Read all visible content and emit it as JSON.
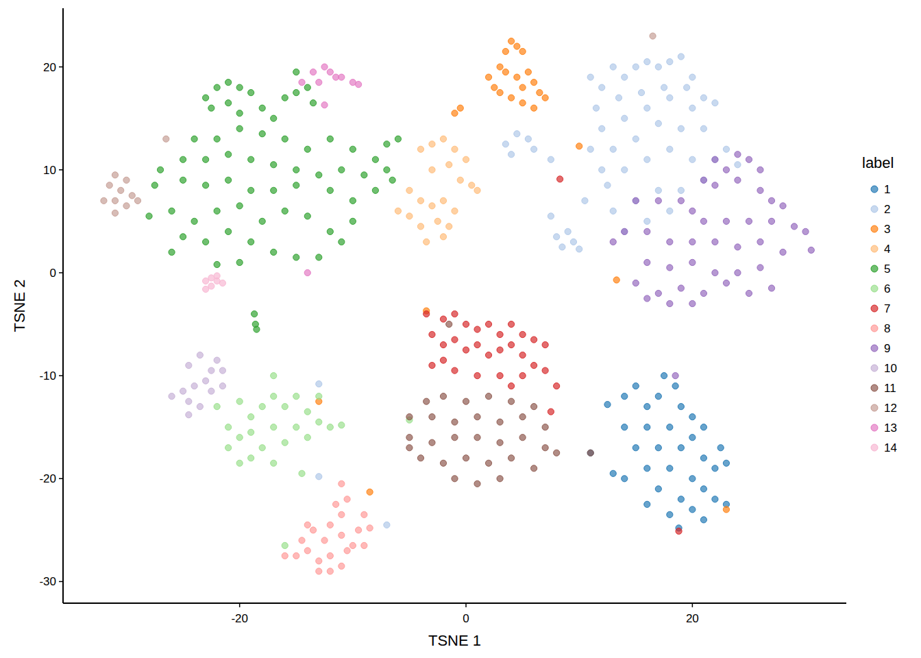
{
  "chart_data": {
    "type": "scatter",
    "x_label": "TSNE 1",
    "y_label": "TSNE 2",
    "legend_title": "label",
    "xlim": [
      -35.6,
      33.6
    ],
    "ylim": [
      -32.1,
      25.7
    ],
    "xticks": [
      -20,
      0,
      20
    ],
    "yticks": [
      -30,
      -20,
      -10,
      0,
      10,
      20
    ],
    "grid": false,
    "legend": "right",
    "marker": "circle",
    "series": [
      {
        "name": "1",
        "color": "#1f77b4",
        "x": [
          12.5,
          14,
          15,
          16,
          17,
          17.5,
          18.5,
          19,
          20,
          21,
          20,
          18,
          16,
          14,
          15,
          17,
          19,
          21,
          22,
          23,
          22.5,
          13,
          14,
          16,
          18,
          20,
          17,
          19,
          21,
          22,
          16,
          18,
          20,
          21,
          11,
          18.8,
          23
        ],
        "values": [
          -12.8,
          -12,
          -11,
          -13,
          -12,
          -10,
          -11,
          -13,
          -14,
          -15,
          -16,
          -15,
          -15,
          -15,
          -17,
          -17,
          -17,
          -18,
          -19,
          -18.5,
          -17,
          -19.5,
          -20,
          -19,
          -19,
          -20,
          -21,
          -22,
          -21,
          -22,
          -22.5,
          -23.5,
          -23,
          -24,
          -17.5,
          -24.8,
          -22.5
        ]
      },
      {
        "name": "2",
        "color": "#aec7e8",
        "x": [
          11,
          12,
          13,
          14,
          15,
          16,
          17,
          18,
          19,
          20,
          19.5,
          17.5,
          15.5,
          13.5,
          11.5,
          12,
          14,
          16,
          18,
          20,
          21,
          22,
          21,
          19,
          17,
          15,
          13,
          11,
          12,
          14,
          16,
          18,
          20,
          22,
          23,
          24,
          21,
          19,
          17,
          15,
          13,
          14,
          16,
          18,
          12.5,
          10.5,
          3.5,
          4.5,
          5.5,
          6,
          4,
          7.5,
          7.5,
          8,
          9,
          9.5,
          8.5,
          10,
          -13,
          -13,
          -7
        ],
        "values": [
          19,
          18,
          20,
          19,
          20,
          20.5,
          20,
          20.5,
          21,
          19,
          18,
          18,
          17.5,
          17,
          16,
          14,
          15,
          16,
          17,
          16,
          17,
          16.5,
          14,
          14,
          14.5,
          13,
          12,
          12,
          10,
          10,
          11,
          12,
          11,
          11,
          12,
          10.5,
          9,
          8,
          8,
          7,
          6,
          4,
          5,
          6,
          8.5,
          7,
          12.5,
          13.5,
          13,
          12,
          11.5,
          11,
          5.5,
          3.5,
          4,
          3,
          2.5,
          2.3,
          -10.8,
          -19.8,
          -24.5
        ]
      },
      {
        "name": "3",
        "color": "#ff7f0e",
        "x": [
          2,
          2.5,
          3,
          3.5,
          4,
          4.5,
          5,
          3.5,
          4.5,
          5,
          5.5,
          6,
          6.5,
          7,
          4,
          3,
          5,
          6,
          -1,
          -0.5,
          10,
          13.3,
          -3.5,
          -13,
          -8.5,
          23
        ],
        "values": [
          19,
          18,
          20,
          21.5,
          22.5,
          22,
          21.5,
          19.5,
          19,
          18,
          19.5,
          18.5,
          17.5,
          17,
          17,
          17.5,
          16.5,
          16,
          15.5,
          16,
          12.3,
          -0.7,
          -3.7,
          -12.5,
          -21.3,
          -23
        ]
      },
      {
        "name": "4",
        "color": "#ffbb78",
        "x": [
          -4,
          -3,
          -2,
          -1,
          0,
          -1.5,
          -3,
          0.5,
          1,
          -0.5,
          -5,
          -4,
          -3,
          -2,
          -1,
          -2.5,
          -4,
          -5,
          -3.5,
          -2,
          -1.5,
          -6
        ],
        "values": [
          12,
          12.5,
          13,
          12,
          11,
          10.5,
          10,
          8.5,
          8,
          9,
          8,
          7,
          6.5,
          7,
          6,
          5,
          4.5,
          5.5,
          3,
          3.5,
          4.5,
          6
        ]
      },
      {
        "name": "5",
        "color": "#2ca02c",
        "x": [
          -23,
          -22,
          -21,
          -20,
          -19,
          -22.5,
          -21,
          -20,
          -18,
          -17,
          -16,
          -15,
          -14,
          -15,
          -13.5,
          -24,
          -22,
          -20,
          -18,
          -16,
          -14,
          -12,
          -10,
          -8,
          -7,
          -6,
          -25,
          -23,
          -21,
          -19,
          -17,
          -15,
          -13,
          -11,
          -9,
          -7,
          -6.5,
          -27,
          -25,
          -23,
          -21,
          -19,
          -17,
          -15,
          -12,
          -10,
          -8,
          -26,
          -24,
          -22,
          -20,
          -18,
          -16,
          -14,
          -12,
          -10,
          -25,
          -23,
          -21,
          -19,
          -17,
          -15,
          -13,
          -11,
          -20,
          -26,
          -28,
          -27.5,
          -18.7,
          -18.6,
          -18.5,
          -22
        ],
        "values": [
          17,
          18,
          18.5,
          18,
          17.5,
          16,
          16.5,
          15.5,
          16,
          15,
          17,
          17.5,
          18,
          19.5,
          16.5,
          13,
          13,
          14,
          13.5,
          13,
          12,
          13,
          12,
          11,
          12.5,
          13,
          11,
          11,
          11.5,
          11,
          10.5,
          10,
          9.5,
          10,
          9.5,
          10,
          9,
          10,
          9,
          8.5,
          9,
          8,
          8,
          8.5,
          8,
          7,
          8,
          6,
          5,
          6,
          6.5,
          5,
          6,
          5.5,
          4,
          5,
          3.5,
          3,
          4,
          3,
          2,
          1.5,
          1.5,
          3,
          1,
          2,
          5.5,
          8.5,
          -4,
          -5,
          -5.5,
          0.8
        ]
      },
      {
        "name": "6",
        "color": "#98df8a",
        "x": [
          -17,
          -15,
          -13,
          -14,
          -16,
          -18,
          -20,
          -17,
          -19,
          -21,
          -19,
          -17,
          -15,
          -13,
          -12,
          -11,
          -14,
          -16,
          -18,
          -20,
          -21,
          -19,
          -17,
          -20,
          -22,
          -14.5,
          -5,
          -16
        ],
        "values": [
          -12,
          -12,
          -12,
          -13.5,
          -13,
          -13,
          -12.5,
          -10,
          -14,
          -15,
          -15.5,
          -15,
          -15,
          -14.5,
          -15,
          -14.8,
          -16,
          -16.5,
          -17,
          -16,
          -17,
          -18,
          -18.5,
          -18.5,
          -13,
          -19.5,
          -14.3,
          -26.5
        ]
      },
      {
        "name": "7",
        "color": "#d62728",
        "x": [
          -3.5,
          -2,
          -1,
          0,
          1,
          2,
          3,
          4,
          5,
          6,
          7,
          -3,
          -2,
          -1,
          0,
          1,
          2,
          3,
          4,
          5,
          6,
          -3,
          -2,
          -1,
          1,
          3,
          5,
          7,
          8,
          7.5,
          4,
          8.3,
          18.8
        ],
        "values": [
          -4,
          -4.5,
          -4,
          -5,
          -5.5,
          -5,
          -6,
          -5,
          -6,
          -6.5,
          -7,
          -6,
          -7,
          -6.5,
          -7.5,
          -7,
          -8,
          -7.5,
          -7,
          -8,
          -9,
          -9,
          -8.5,
          -9.5,
          -10,
          -10,
          -10,
          -9.5,
          -11,
          -13.5,
          -11,
          9.1,
          -25.1
        ]
      },
      {
        "name": "8",
        "color": "#ff9896",
        "x": [
          -11,
          -10.5,
          -11,
          -9,
          -12,
          -13.5,
          -14,
          -12.5,
          -11,
          -9.5,
          -8.5,
          -10,
          -14,
          -15,
          -13,
          -12,
          -11,
          -13,
          -10.5,
          -9,
          -12,
          -14.5,
          -16,
          -11.5
        ],
        "values": [
          -20.5,
          -22,
          -23.5,
          -23.5,
          -24.5,
          -25,
          -24.5,
          -26,
          -25.5,
          -25,
          -24.8,
          -26.5,
          -27,
          -27.5,
          -28,
          -27.5,
          -28.5,
          -29,
          -27,
          -26.5,
          -29,
          -26,
          -27.5,
          -22.5
        ]
      },
      {
        "name": "9",
        "color": "#9467bd",
        "x": [
          22,
          23,
          24,
          25,
          26,
          21,
          22,
          24,
          26,
          27,
          28,
          15,
          17,
          19,
          20,
          21,
          23,
          25,
          27,
          29,
          30,
          30.5,
          14,
          16,
          18,
          20,
          22,
          24,
          26,
          28,
          16,
          18,
          20,
          22,
          24,
          26,
          15,
          17,
          19,
          21,
          23,
          25,
          27,
          18,
          20,
          16,
          13,
          18.5
        ],
        "values": [
          11,
          10,
          11.5,
          11,
          10,
          9,
          8.5,
          9,
          8,
          7,
          6.5,
          7,
          7,
          7,
          6,
          5,
          5,
          5,
          5,
          4.5,
          4,
          2.2,
          4,
          4,
          3,
          3,
          3,
          2.5,
          3,
          2,
          1,
          0.5,
          1,
          0,
          0,
          0.5,
          -1,
          -2,
          -1.5,
          -2,
          -1,
          -2,
          -1.5,
          -3,
          -3,
          -2.5,
          3,
          -10
        ]
      },
      {
        "name": "10",
        "color": "#c5b0d5",
        "x": [
          -23.5,
          -24.5,
          -22.5,
          -23,
          -24,
          -25,
          -26,
          -24.5,
          -23.5,
          -24.5,
          -22.5,
          -21.5,
          -21.5,
          -22
        ],
        "values": [
          -8,
          -9,
          -9.5,
          -10.5,
          -11,
          -11.5,
          -12,
          -12.5,
          -13,
          -13.8,
          -11.5,
          -11,
          -9.5,
          -8.5
        ]
      },
      {
        "name": "11",
        "color": "#8c564b",
        "x": [
          -3.5,
          -2,
          0,
          2,
          4,
          6,
          -5,
          -3,
          -1,
          1,
          3,
          5,
          7,
          -5,
          -3,
          -1,
          1,
          3,
          5,
          7,
          8,
          -4,
          -2,
          0,
          2,
          4,
          6,
          -1,
          1,
          3,
          -5,
          11,
          -1.5
        ],
        "values": [
          -12.5,
          -12,
          -12.5,
          -12,
          -12.5,
          -13,
          -14,
          -14,
          -14.5,
          -14,
          -14.5,
          -14,
          -15,
          -16,
          -16.5,
          -16,
          -16,
          -16.5,
          -16,
          -17,
          -17.5,
          -18,
          -18.5,
          -18,
          -18.5,
          -18,
          -19,
          -20,
          -20.5,
          -20,
          -17,
          -17.5,
          -5
        ]
      },
      {
        "name": "12",
        "color": "#c49c94",
        "x": [
          -31,
          -30,
          -31.5,
          -30.5,
          -29.5,
          -32,
          -31,
          -30,
          -31,
          -29,
          -26.5,
          16.5
        ],
        "values": [
          9.5,
          9,
          8.5,
          8,
          7.5,
          7,
          7,
          6.5,
          5.8,
          7,
          13,
          23
        ]
      },
      {
        "name": "13",
        "color": "#e377c2",
        "x": [
          -14.5,
          -13.5,
          -12.5,
          -12,
          -11.5,
          -13,
          -11,
          -10,
          -9.5,
          -12.5,
          -14
        ],
        "values": [
          18.5,
          19.5,
          20,
          19.5,
          19,
          18.5,
          19,
          18.5,
          18.3,
          16.3,
          0
        ]
      },
      {
        "name": "14",
        "color": "#f7b6d2",
        "x": [
          -23,
          -22.5,
          -22,
          -21.5,
          -22.5,
          -23,
          -22
        ],
        "values": [
          -0.8,
          -0.5,
          -0.3,
          -1,
          -1.3,
          -1.6,
          -0.8
        ]
      }
    ]
  }
}
